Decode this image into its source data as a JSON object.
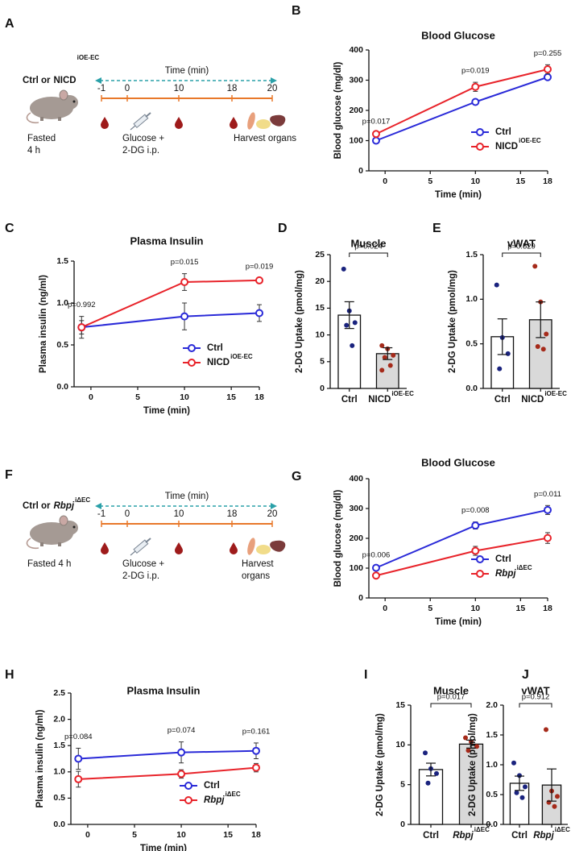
{
  "schematics": [
    {
      "panel_label": "A",
      "group": [
        "Ctrl or",
        "NICD"
      ],
      "group_sup": "iOE-EC",
      "group_italic": false,
      "axis_label": "Time (min)",
      "ticks": [
        -1,
        0,
        10,
        18,
        20
      ],
      "fasted": [
        "Fasted",
        "4 h"
      ],
      "injection": [
        "Glucose +",
        "2-DG i.p."
      ],
      "harvest": [
        "Harvest organs"
      ]
    },
    {
      "panel_label": "F",
      "group": [
        "Ctrl or",
        "Rbpj"
      ],
      "group_sup": "iΔEC",
      "group_italic": true,
      "axis_label": "Time (min)",
      "ticks": [
        -1,
        0,
        10,
        18,
        20
      ],
      "fasted": [
        "Fasted 4 h"
      ],
      "injection": [
        "Glucose +",
        "2-DG i.p."
      ],
      "harvest": [
        "Harvest",
        "organs"
      ]
    }
  ],
  "chart_data": [
    {
      "type": "line",
      "panel_label": "B",
      "title": "Blood Glucose",
      "x_label": "Time (min)",
      "y_label": "Blood glucose (mg/dl)",
      "x": [
        -1,
        10,
        18
      ],
      "xlim": [
        -1.8,
        18
      ],
      "xticks": [
        0,
        5,
        10,
        15,
        18
      ],
      "ylim": [
        0,
        400
      ],
      "yticks": [
        0,
        100,
        200,
        300,
        400
      ],
      "legend": "lower right",
      "series": [
        {
          "name": "Ctrl",
          "italic": false,
          "color": "#2a2ad8",
          "values": [
            100,
            228,
            310
          ],
          "errors": [
            3,
            8,
            8
          ]
        },
        {
          "name": "NICD",
          "name_sup": "iOE-EC",
          "italic": false,
          "color": "#e8232a",
          "values": [
            122,
            278,
            336
          ],
          "errors": [
            4,
            15,
            15
          ]
        }
      ],
      "annotations": [
        "p=0.017",
        "p=0.019",
        "p=0.255"
      ]
    },
    {
      "type": "line",
      "panel_label": "C",
      "title": "Plasma Insulin",
      "x_label": "Time (min)",
      "y_label": "Plasma insulin (ng/ml)",
      "x": [
        -1,
        10,
        18
      ],
      "xlim": [
        -1.8,
        18
      ],
      "xticks": [
        0,
        5,
        10,
        15,
        18
      ],
      "ylim": [
        0,
        1.5
      ],
      "yticks": [
        {
          "value": 0,
          "label": "0.0"
        },
        0.5,
        {
          "value": 1,
          "label": "1.0"
        },
        1.5
      ],
      "legend": "lower right",
      "series": [
        {
          "name": "Ctrl",
          "italic": false,
          "color": "#2a2ad8",
          "values": [
            0.71,
            0.84,
            0.88
          ],
          "errors": [
            0.13,
            0.16,
            0.1
          ]
        },
        {
          "name": "NICD",
          "name_sup": "iOE-EC",
          "italic": false,
          "color": "#e8232a",
          "values": [
            0.71,
            1.25,
            1.27
          ],
          "errors": [
            0.08,
            0.1,
            0.03
          ]
        }
      ],
      "annotations": [
        "p=0.992",
        "p=0.015",
        "p=0.019"
      ]
    },
    {
      "type": "bar",
      "panel_label": "D",
      "title": "Muscle",
      "y_label": "2-DG Uptake (pmol/mg)",
      "categories": [
        "Ctrl",
        "NICD"
      ],
      "category_sups": [
        null,
        "iOE-EC"
      ],
      "category_italic": [
        false,
        false
      ],
      "values": [
        13.7,
        6.5
      ],
      "errors": [
        2.5,
        1.1
      ],
      "points": [
        [
          22.3,
          14.5,
          12.3,
          11.8,
          8.0
        ],
        [
          8.0,
          7.4,
          6.2,
          5.8,
          4.3,
          3.4
        ]
      ],
      "bar_colors": [
        "#ffffff",
        "#d9d9d9"
      ],
      "point_colors": [
        "#1a237e",
        "#a52a1a"
      ],
      "ylim": [
        0,
        25
      ],
      "yticks": [
        0,
        5,
        10,
        15,
        20,
        25
      ],
      "annotation": "p=0.024"
    },
    {
      "type": "bar",
      "panel_label": "E",
      "title": "vWAT",
      "y_label": "2-DG Uptake (pmol/mg)",
      "categories": [
        "Ctrl",
        "NICD"
      ],
      "category_sups": [
        null,
        "iOE-EC"
      ],
      "category_italic": [
        false,
        false
      ],
      "values": [
        0.58,
        0.77
      ],
      "errors": [
        0.2,
        0.2
      ],
      "points": [
        [
          1.16,
          0.57,
          0.39,
          0.22
        ],
        [
          1.37,
          0.97,
          0.61,
          0.47,
          0.44
        ]
      ],
      "bar_colors": [
        "#ffffff",
        "#d9d9d9"
      ],
      "point_colors": [
        "#1a237e",
        "#a52a1a"
      ],
      "ylim": [
        0,
        1.5
      ],
      "yticks": [
        {
          "value": 0,
          "label": "0.0"
        },
        0.5,
        {
          "value": 1,
          "label": "1.0"
        },
        1.5
      ],
      "annotation": "p=0.529"
    },
    {
      "type": "line",
      "panel_label": "G",
      "title": "Blood Glucose",
      "x_label": "Time (min)",
      "y_label": "Blood glucose (mg/dl)",
      "x": [
        -1,
        10,
        18
      ],
      "xlim": [
        -1.8,
        18
      ],
      "xticks": [
        0,
        5,
        10,
        15,
        18
      ],
      "ylim": [
        0,
        400
      ],
      "yticks": [
        0,
        100,
        200,
        300,
        400
      ],
      "legend": "lower right",
      "series": [
        {
          "name": "Ctrl",
          "italic": false,
          "color": "#2a2ad8",
          "values": [
            101,
            243,
            295
          ],
          "errors": [
            4,
            12,
            15
          ]
        },
        {
          "name": "Rbpj",
          "name_sup": "iΔEC",
          "italic": true,
          "color": "#e8232a",
          "values": [
            75,
            158,
            201
          ],
          "errors": [
            3,
            15,
            18
          ]
        }
      ],
      "annotations": [
        "p=0.006",
        "p=0.008",
        "p=0.011"
      ]
    },
    {
      "type": "line",
      "panel_label": "H",
      "title": "Plasma Insulin",
      "x_label": "Time (min)",
      "y_label": "Plasma insulin (ng/ml)",
      "x": [
        -1,
        10,
        18
      ],
      "xlim": [
        -1.8,
        18
      ],
      "xticks": [
        0,
        5,
        10,
        15,
        18
      ],
      "ylim": [
        0,
        2.5
      ],
      "yticks": [
        {
          "value": 0,
          "label": "0.0"
        },
        0.5,
        {
          "value": 1,
          "label": "1.0"
        },
        1.5,
        {
          "value": 2,
          "label": "2.0"
        },
        2.5
      ],
      "legend": "lower right",
      "series": [
        {
          "name": "Ctrl",
          "italic": false,
          "color": "#2a2ad8",
          "values": [
            1.25,
            1.37,
            1.4
          ],
          "errors": [
            0.2,
            0.2,
            0.15
          ]
        },
        {
          "name": "Rbpj",
          "name_sup": "iΔEC",
          "italic": true,
          "color": "#e8232a",
          "values": [
            0.86,
            0.96,
            1.08
          ],
          "errors": [
            0.15,
            0.08,
            0.08
          ]
        }
      ],
      "annotations": [
        "p=0.084",
        "p=0.074",
        "p=0.161"
      ]
    },
    {
      "type": "bar",
      "panel_label": "I",
      "title": "Muscle",
      "y_label": "2-DG Uptake (pmol/mg)",
      "categories": [
        "Ctrl",
        "Rbpj"
      ],
      "category_sups": [
        null,
        "iΔEC"
      ],
      "category_italic": [
        false,
        true
      ],
      "values": [
        6.9,
        10.1
      ],
      "errors": [
        0.8,
        0.5
      ],
      "points": [
        [
          9.0,
          7.0,
          6.4,
          5.2
        ],
        [
          10.9,
          10.4,
          9.8,
          9.3
        ]
      ],
      "bar_colors": [
        "#ffffff",
        "#d9d9d9"
      ],
      "point_colors": [
        "#1a237e",
        "#a52a1a"
      ],
      "ylim": [
        0,
        15
      ],
      "yticks": [
        0,
        5,
        10,
        15
      ],
      "annotation": "p=0.017"
    },
    {
      "type": "bar",
      "panel_label": "J",
      "title": "vWAT",
      "y_label": "2-DG Uptake (pmol/mg)",
      "categories": [
        "Ctrl",
        "Rbpj"
      ],
      "category_sups": [
        null,
        "iΔEC"
      ],
      "category_italic": [
        false,
        true
      ],
      "values": [
        0.69,
        0.66
      ],
      "errors": [
        0.12,
        0.27
      ],
      "points": [
        [
          1.03,
          0.82,
          0.63,
          0.53,
          0.45
        ],
        [
          1.59,
          0.56,
          0.47,
          0.37,
          0.3
        ]
      ],
      "bar_colors": [
        "#ffffff",
        "#d9d9d9"
      ],
      "point_colors": [
        "#1a237e",
        "#a52a1a"
      ],
      "ylim": [
        0,
        2
      ],
      "yticks": [
        {
          "value": 0,
          "label": "0.0"
        },
        0.5,
        {
          "value": 1,
          "label": "1.0"
        },
        1.5,
        {
          "value": 2,
          "label": "2.0"
        }
      ],
      "annotation": "p=0.912"
    }
  ]
}
